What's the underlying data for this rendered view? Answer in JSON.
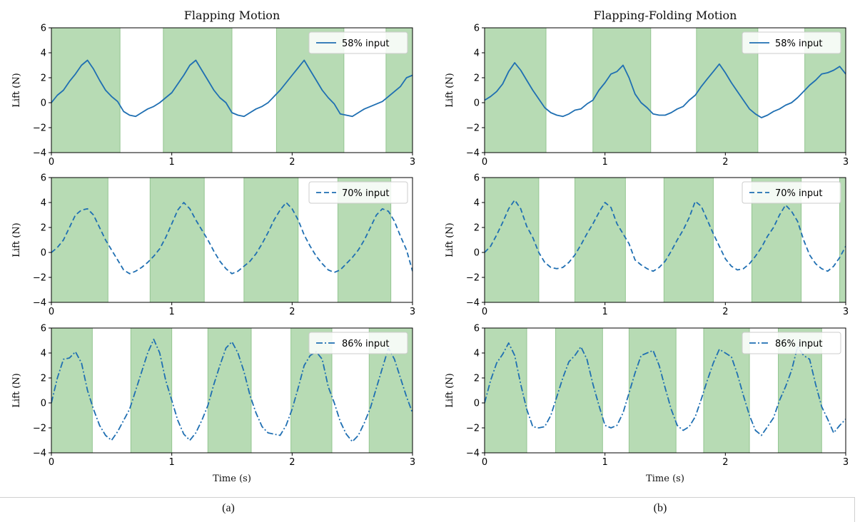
{
  "figure": {
    "col_a_title": "Flapping Motion",
    "col_b_title": "Flapping-Folding Motion",
    "xlabel": "Time (s)",
    "caption_a": "(a)",
    "caption_b": "(b)",
    "colors": {
      "line": "#1f6fb2",
      "band": "#b7dbb4",
      "band_edge": "#94c591"
    }
  },
  "chart_data": [
    {
      "id": "a1",
      "type": "line",
      "title": "Flapping Motion",
      "xlabel": "",
      "ylabel": "Lift (N)",
      "xlim": [
        0,
        3
      ],
      "ylim": [
        -4,
        6
      ],
      "xticks": [
        "0",
        "1",
        "2",
        "3"
      ],
      "yticks": [
        "−4",
        "−2",
        "0",
        "2",
        "4",
        "6"
      ],
      "legend": "top-right",
      "grid": false,
      "bands": [
        [
          0,
          0.57
        ],
        [
          0.93,
          1.5
        ],
        [
          1.87,
          2.43
        ],
        [
          2.78,
          3.0
        ]
      ],
      "series": [
        {
          "name": "58% input",
          "style": "solid",
          "x": [
            0,
            0.05,
            0.1,
            0.15,
            0.2,
            0.25,
            0.3,
            0.35,
            0.4,
            0.45,
            0.5,
            0.55,
            0.6,
            0.65,
            0.7,
            0.75,
            0.8,
            0.85,
            0.9,
            0.95,
            1.0,
            1.05,
            1.1,
            1.15,
            1.2,
            1.25,
            1.3,
            1.35,
            1.4,
            1.45,
            1.5,
            1.55,
            1.6,
            1.65,
            1.7,
            1.75,
            1.8,
            1.85,
            1.9,
            1.95,
            2.0,
            2.05,
            2.1,
            2.15,
            2.2,
            2.25,
            2.3,
            2.35,
            2.4,
            2.45,
            2.5,
            2.55,
            2.6,
            2.65,
            2.7,
            2.75,
            2.8,
            2.85,
            2.9,
            2.95,
            3.0
          ],
          "y": [
            0,
            0.6,
            1.0,
            1.7,
            2.3,
            3.0,
            3.4,
            2.7,
            1.8,
            1.0,
            0.5,
            0.1,
            -0.7,
            -1.0,
            -1.1,
            -0.8,
            -0.5,
            -0.3,
            0,
            0.4,
            0.8,
            1.5,
            2.2,
            3.0,
            3.4,
            2.6,
            1.8,
            1.0,
            0.4,
            0,
            -0.8,
            -1.0,
            -1.1,
            -0.8,
            -0.5,
            -0.3,
            0,
            0.5,
            1.0,
            1.6,
            2.2,
            2.8,
            3.4,
            2.6,
            1.8,
            1.0,
            0.4,
            -0.1,
            -0.9,
            -1.0,
            -1.1,
            -0.8,
            -0.5,
            -0.3,
            -0.1,
            0.1,
            0.5,
            0.9,
            1.3,
            2.0,
            2.2
          ]
        }
      ]
    },
    {
      "id": "a2",
      "type": "line",
      "title": "",
      "xlabel": "",
      "ylabel": "Lift (N)",
      "xlim": [
        0,
        3
      ],
      "ylim": [
        -4,
        6
      ],
      "xticks": [
        "0",
        "1",
        "2",
        "3"
      ],
      "yticks": [
        "−4",
        "−2",
        "0",
        "2",
        "4",
        "6"
      ],
      "legend": "top-right",
      "grid": false,
      "bands": [
        [
          0,
          0.47
        ],
        [
          0.82,
          1.27
        ],
        [
          1.6,
          2.05
        ],
        [
          2.38,
          2.82
        ]
      ],
      "series": [
        {
          "name": "70% input",
          "style": "dashed",
          "x": [
            0,
            0.05,
            0.1,
            0.15,
            0.2,
            0.25,
            0.3,
            0.35,
            0.4,
            0.45,
            0.5,
            0.55,
            0.6,
            0.65,
            0.7,
            0.75,
            0.8,
            0.85,
            0.9,
            0.95,
            1.0,
            1.05,
            1.1,
            1.15,
            1.2,
            1.25,
            1.3,
            1.35,
            1.4,
            1.45,
            1.5,
            1.55,
            1.6,
            1.65,
            1.7,
            1.75,
            1.8,
            1.85,
            1.9,
            1.95,
            2.0,
            2.05,
            2.1,
            2.15,
            2.2,
            2.25,
            2.3,
            2.35,
            2.4,
            2.45,
            2.5,
            2.55,
            2.6,
            2.65,
            2.7,
            2.75,
            2.8,
            2.85,
            2.9,
            2.95,
            3.0
          ],
          "y": [
            0,
            0.4,
            1.0,
            2.0,
            3.0,
            3.4,
            3.5,
            3.0,
            2.0,
            1.0,
            0.2,
            -0.6,
            -1.4,
            -1.7,
            -1.5,
            -1.2,
            -0.8,
            -0.3,
            0.3,
            1.2,
            2.3,
            3.4,
            4.0,
            3.5,
            2.6,
            1.8,
            1.0,
            0.1,
            -0.7,
            -1.3,
            -1.7,
            -1.5,
            -1.1,
            -0.7,
            -0.1,
            0.7,
            1.6,
            2.6,
            3.4,
            4.0,
            3.5,
            2.6,
            1.4,
            0.5,
            -0.3,
            -0.9,
            -1.4,
            -1.6,
            -1.4,
            -0.9,
            -0.4,
            0.2,
            1.0,
            2.0,
            3.0,
            3.5,
            3.3,
            2.5,
            1.3,
            0.2,
            -1.5
          ]
        }
      ]
    },
    {
      "id": "a3",
      "type": "line",
      "title": "",
      "xlabel": "Time (s)",
      "ylabel": "Lift (N)",
      "xlim": [
        0,
        3
      ],
      "ylim": [
        -4,
        6
      ],
      "xticks": [
        "0",
        "1",
        "2",
        "3"
      ],
      "yticks": [
        "−4",
        "−2",
        "0",
        "2",
        "4",
        "6"
      ],
      "legend": "top-right",
      "grid": false,
      "bands": [
        [
          0,
          0.34
        ],
        [
          0.66,
          1.0
        ],
        [
          1.3,
          1.66
        ],
        [
          1.99,
          2.33
        ],
        [
          2.64,
          3.0
        ]
      ],
      "series": [
        {
          "name": "86% input",
          "style": "dashdot",
          "x": [
            0,
            0.05,
            0.1,
            0.15,
            0.2,
            0.25,
            0.3,
            0.35,
            0.4,
            0.45,
            0.5,
            0.55,
            0.6,
            0.65,
            0.7,
            0.75,
            0.8,
            0.85,
            0.9,
            0.95,
            1.0,
            1.05,
            1.1,
            1.15,
            1.2,
            1.25,
            1.3,
            1.35,
            1.4,
            1.45,
            1.5,
            1.55,
            1.6,
            1.65,
            1.7,
            1.75,
            1.8,
            1.85,
            1.9,
            1.95,
            2.0,
            2.05,
            2.1,
            2.15,
            2.2,
            2.25,
            2.3,
            2.35,
            2.4,
            2.45,
            2.5,
            2.55,
            2.6,
            2.65,
            2.7,
            2.75,
            2.8,
            2.85,
            2.9,
            2.95,
            3.0
          ],
          "y": [
            0,
            2.0,
            3.5,
            3.6,
            4.1,
            3.2,
            1.0,
            -0.5,
            -1.8,
            -2.6,
            -3.0,
            -2.3,
            -1.4,
            -0.5,
            1.0,
            2.5,
            4.0,
            5.1,
            4.0,
            1.8,
            0.2,
            -1.4,
            -2.5,
            -3.0,
            -2.4,
            -1.4,
            -0.2,
            1.5,
            3.0,
            4.4,
            4.9,
            4.0,
            2.5,
            0.6,
            -0.8,
            -1.9,
            -2.4,
            -2.5,
            -2.6,
            -1.8,
            -0.5,
            1.2,
            3.0,
            3.8,
            4.1,
            3.5,
            1.3,
            0,
            -1.5,
            -2.5,
            -3.1,
            -2.6,
            -1.6,
            -0.4,
            1.2,
            2.8,
            4.4,
            3.5,
            2.0,
            0.5,
            -0.8
          ]
        }
      ]
    },
    {
      "id": "b1",
      "type": "line",
      "title": "Flapping-Folding Motion",
      "xlabel": "",
      "ylabel": "Lift (N)",
      "xlim": [
        0,
        3
      ],
      "ylim": [
        -4,
        6
      ],
      "xticks": [
        "0",
        "1",
        "2",
        "3"
      ],
      "yticks": [
        "−4",
        "−2",
        "0",
        "2",
        "4",
        "6"
      ],
      "legend": "top-right",
      "grid": false,
      "bands": [
        [
          0,
          0.51
        ],
        [
          0.9,
          1.38
        ],
        [
          1.76,
          2.27
        ],
        [
          2.66,
          3.0
        ]
      ],
      "series": [
        {
          "name": "58% input",
          "style": "solid",
          "x": [
            0,
            0.05,
            0.1,
            0.15,
            0.2,
            0.25,
            0.3,
            0.35,
            0.4,
            0.45,
            0.5,
            0.55,
            0.6,
            0.65,
            0.7,
            0.75,
            0.8,
            0.85,
            0.9,
            0.95,
            1.0,
            1.05,
            1.1,
            1.15,
            1.2,
            1.25,
            1.3,
            1.35,
            1.4,
            1.45,
            1.5,
            1.55,
            1.6,
            1.65,
            1.7,
            1.75,
            1.8,
            1.85,
            1.9,
            1.95,
            2.0,
            2.05,
            2.1,
            2.15,
            2.2,
            2.25,
            2.3,
            2.35,
            2.4,
            2.45,
            2.5,
            2.55,
            2.6,
            2.65,
            2.7,
            2.75,
            2.8,
            2.85,
            2.9,
            2.95,
            3.0
          ],
          "y": [
            0.2,
            0.5,
            0.9,
            1.5,
            2.5,
            3.2,
            2.6,
            1.8,
            1.0,
            0.3,
            -0.4,
            -0.8,
            -1.0,
            -1.1,
            -0.9,
            -0.6,
            -0.5,
            -0.1,
            0.2,
            1.0,
            1.6,
            2.3,
            2.5,
            3.0,
            2.0,
            0.7,
            0,
            -0.4,
            -0.9,
            -1.0,
            -1.0,
            -0.8,
            -0.5,
            -0.3,
            0.2,
            0.6,
            1.3,
            1.9,
            2.5,
            3.1,
            2.4,
            1.6,
            0.9,
            0.2,
            -0.5,
            -0.9,
            -1.2,
            -1.0,
            -0.7,
            -0.5,
            -0.2,
            0,
            0.4,
            0.9,
            1.4,
            1.8,
            2.3,
            2.4,
            2.6,
            2.9,
            2.3
          ]
        }
      ]
    },
    {
      "id": "b2",
      "type": "line",
      "title": "",
      "xlabel": "",
      "ylabel": "Lift (N)",
      "xlim": [
        0,
        3
      ],
      "ylim": [
        -4,
        6
      ],
      "xticks": [
        "0",
        "1",
        "2",
        "3"
      ],
      "yticks": [
        "−4",
        "−2",
        "0",
        "2",
        "4",
        "6"
      ],
      "legend": "top-right",
      "grid": false,
      "bands": [
        [
          0,
          0.45
        ],
        [
          0.75,
          1.17
        ],
        [
          1.49,
          1.9
        ],
        [
          2.22,
          2.63
        ],
        [
          2.95,
          3.0
        ]
      ],
      "series": [
        {
          "name": "70% input",
          "style": "dashed",
          "x": [
            0,
            0.05,
            0.1,
            0.15,
            0.2,
            0.25,
            0.3,
            0.35,
            0.4,
            0.45,
            0.5,
            0.55,
            0.6,
            0.65,
            0.7,
            0.75,
            0.8,
            0.85,
            0.9,
            0.95,
            1.0,
            1.05,
            1.1,
            1.15,
            1.2,
            1.25,
            1.3,
            1.35,
            1.4,
            1.45,
            1.5,
            1.55,
            1.6,
            1.65,
            1.7,
            1.75,
            1.8,
            1.85,
            1.9,
            1.95,
            2.0,
            2.05,
            2.1,
            2.15,
            2.2,
            2.25,
            2.3,
            2.35,
            2.4,
            2.45,
            2.5,
            2.55,
            2.6,
            2.65,
            2.7,
            2.75,
            2.8,
            2.85,
            2.9,
            2.95,
            3.0
          ],
          "y": [
            0,
            0.5,
            1.4,
            2.4,
            3.5,
            4.2,
            3.5,
            2.1,
            1.2,
            0,
            -0.8,
            -1.2,
            -1.3,
            -1.2,
            -0.8,
            -0.2,
            0.6,
            1.5,
            2.3,
            3.2,
            4.0,
            3.6,
            2.3,
            1.5,
            0.7,
            -0.6,
            -1.0,
            -1.3,
            -1.5,
            -1.2,
            -0.7,
            0.1,
            1.0,
            1.8,
            2.8,
            4.1,
            3.7,
            2.6,
            1.5,
            0.5,
            -0.5,
            -1.1,
            -1.4,
            -1.3,
            -0.9,
            -0.3,
            0.4,
            1.3,
            2.0,
            3.0,
            3.8,
            3.3,
            2.5,
            1.0,
            -0.2,
            -0.9,
            -1.3,
            -1.5,
            -1.1,
            -0.4,
            0.5
          ]
        }
      ]
    },
    {
      "id": "b3",
      "type": "line",
      "title": "",
      "xlabel": "Time (s)",
      "ylabel": "Lift (N)",
      "xlim": [
        0,
        3
      ],
      "ylim": [
        -4,
        6
      ],
      "xticks": [
        "0",
        "1",
        "2",
        "3"
      ],
      "yticks": [
        "−4",
        "−2",
        "0",
        "2",
        "4",
        "6"
      ],
      "legend": "top-right",
      "grid": false,
      "bands": [
        [
          0,
          0.35
        ],
        [
          0.59,
          0.98
        ],
        [
          1.2,
          1.59
        ],
        [
          1.82,
          2.2
        ],
        [
          2.44,
          2.8
        ]
      ],
      "series": [
        {
          "name": "86% input",
          "style": "dashdot",
          "x": [
            0,
            0.05,
            0.1,
            0.15,
            0.2,
            0.25,
            0.3,
            0.35,
            0.4,
            0.45,
            0.5,
            0.55,
            0.6,
            0.65,
            0.7,
            0.75,
            0.8,
            0.85,
            0.9,
            0.95,
            1.0,
            1.05,
            1.1,
            1.15,
            1.2,
            1.25,
            1.3,
            1.35,
            1.4,
            1.45,
            1.5,
            1.55,
            1.6,
            1.65,
            1.7,
            1.75,
            1.8,
            1.85,
            1.9,
            1.95,
            2.0,
            2.05,
            2.1,
            2.15,
            2.2,
            2.25,
            2.3,
            2.35,
            2.4,
            2.45,
            2.5,
            2.55,
            2.6,
            2.65,
            2.7,
            2.75,
            2.8,
            2.85,
            2.9,
            2.95,
            3.0
          ],
          "y": [
            0,
            1.8,
            3.2,
            3.9,
            4.8,
            3.8,
            1.5,
            -0.5,
            -1.9,
            -2.0,
            -1.9,
            -1.0,
            0.5,
            2.0,
            3.3,
            3.8,
            4.5,
            3.5,
            1.5,
            -0.2,
            -1.8,
            -2.0,
            -1.8,
            -0.8,
            0.8,
            2.4,
            3.8,
            4.0,
            4.2,
            3.0,
            1.2,
            -0.5,
            -1.8,
            -2.2,
            -1.9,
            -1.1,
            0.3,
            1.8,
            3.2,
            4.3,
            4.0,
            3.7,
            2.3,
            0.6,
            -1.0,
            -2.2,
            -2.6,
            -1.9,
            -1.2,
            0.2,
            1.3,
            2.6,
            4.5,
            3.8,
            3.5,
            1.5,
            -0.3,
            -1.3,
            -2.4,
            -1.8,
            -1.3
          ]
        }
      ]
    }
  ]
}
